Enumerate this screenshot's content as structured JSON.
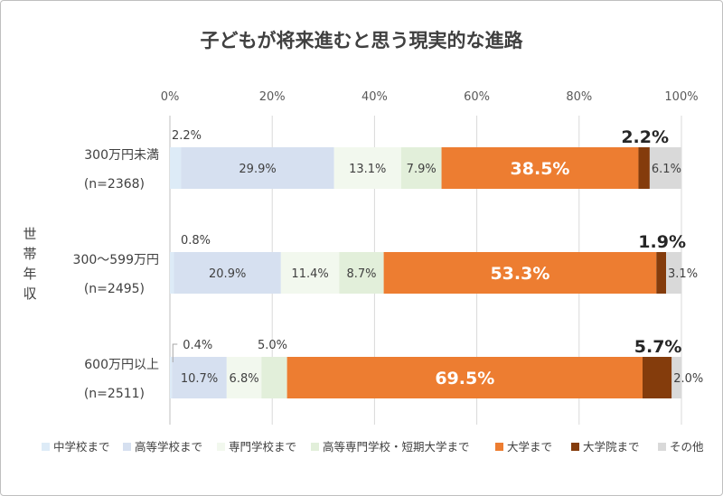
{
  "chart_data": {
    "type": "bar",
    "stacked": true,
    "orientation": "horizontal",
    "title": "子どもが将来進むと思う現実的な進路",
    "xlabel": "",
    "ylabel": "世帯年収",
    "xlim": [
      0,
      100
    ],
    "x_ticks": [
      "0%",
      "20%",
      "40%",
      "60%",
      "80%",
      "100%"
    ],
    "grid": "vertical",
    "legend_position": "bottom",
    "categories": [
      {
        "label": "300万円未満",
        "n": "(n=2368)"
      },
      {
        "label": "300〜599万円",
        "n": "(n=2495)"
      },
      {
        "label": "600万円以上",
        "n": "(n=2511)"
      }
    ],
    "series": [
      {
        "name": "中学校まで",
        "color": "#ddebf7",
        "values": [
          2.2,
          0.8,
          0.4
        ]
      },
      {
        "name": "高等学校まで",
        "color": "#d6e0f0",
        "values": [
          29.9,
          20.9,
          10.7
        ]
      },
      {
        "name": "専門学校まで",
        "color": "#f2f8ee",
        "values": [
          13.1,
          11.4,
          6.8
        ]
      },
      {
        "name": "高等専門学校・短期大学まで",
        "color": "#e2efda",
        "values": [
          7.9,
          8.7,
          5.0
        ]
      },
      {
        "name": "大学まで",
        "color": "#ed7d31",
        "values": [
          38.5,
          53.3,
          69.5
        ]
      },
      {
        "name": "大学院まで",
        "color": "#843c0c",
        "values": [
          2.2,
          1.9,
          5.7
        ]
      },
      {
        "name": "その他",
        "color": "#d9d9d9",
        "values": [
          6.1,
          3.1,
          2.0
        ]
      }
    ],
    "value_labels": [
      [
        "2.2%",
        "29.9%",
        "13.1%",
        "7.9%",
        "38.5%",
        "2.2%",
        "6.1%"
      ],
      [
        "0.8%",
        "20.9%",
        "11.4%",
        "8.7%",
        "53.3%",
        "1.9%",
        "3.1%"
      ],
      [
        "0.4%",
        "10.7%",
        "6.8%",
        "5.0%",
        "69.5%",
        "5.7%",
        "2.0%"
      ]
    ]
  }
}
